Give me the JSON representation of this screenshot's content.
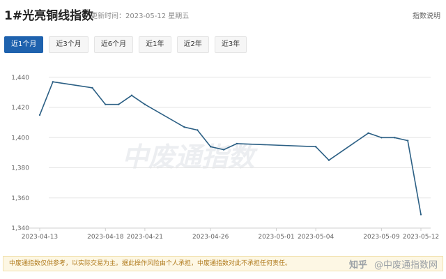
{
  "header": {
    "title": "1#光亮铜线指数",
    "updated": "更新时间：2023-05-12 星期五",
    "help_label": "指数说明"
  },
  "tabs": [
    {
      "label": "近1个月",
      "active": true
    },
    {
      "label": "近3个月",
      "active": false
    },
    {
      "label": "近6个月",
      "active": false
    },
    {
      "label": "近1年",
      "active": false
    },
    {
      "label": "近2年",
      "active": false
    },
    {
      "label": "近3年",
      "active": false
    }
  ],
  "watermark": "中废通指数",
  "disclaimer": "中废通指数仅供参考，以实际交易为主。据此操作风险由个人承担，中废通指数对此不承担任何责任。",
  "zhihu": {
    "brand": "知乎",
    "handle": "@中废通指数网"
  },
  "colors": {
    "line": "#2b5f84",
    "tab_active": "#1e62ae",
    "grid": "#e6e6e6"
  },
  "chart_data": {
    "type": "line",
    "x": [
      "2023-04-13",
      "2023-04-14",
      "2023-04-17",
      "2023-04-18",
      "2023-04-19",
      "2023-04-20",
      "2023-04-21",
      "2023-04-24",
      "2023-04-25",
      "2023-04-26",
      "2023-04-27",
      "2023-04-28",
      "2023-05-04",
      "2023-05-05",
      "2023-05-08",
      "2023-05-09",
      "2023-05-10",
      "2023-05-11",
      "2023-05-12"
    ],
    "series": [
      {
        "values": [
          1415,
          1437,
          1433,
          1422,
          1422,
          1428,
          1422,
          1407,
          1405,
          1394,
          1392,
          1396,
          1394,
          1385,
          1403,
          1400,
          1400,
          1398,
          1349
        ]
      }
    ],
    "xticks": [
      "2023-04-13",
      "2023-04-18",
      "2023-04-21",
      "2023-04-26",
      "2023-05-01",
      "2023-05-04",
      "2023-05-09",
      "2023-05-12"
    ],
    "yticks": [
      1340,
      1360,
      1380,
      1400,
      1420,
      1440
    ],
    "ytick_labels": [
      "1,340",
      "1,360",
      "1,380",
      "1,400",
      "1,420",
      "1,440"
    ],
    "ylim": [
      1340,
      1445
    ],
    "title": "",
    "xlabel": "",
    "ylabel": "",
    "grid": true,
    "legend": "none"
  }
}
